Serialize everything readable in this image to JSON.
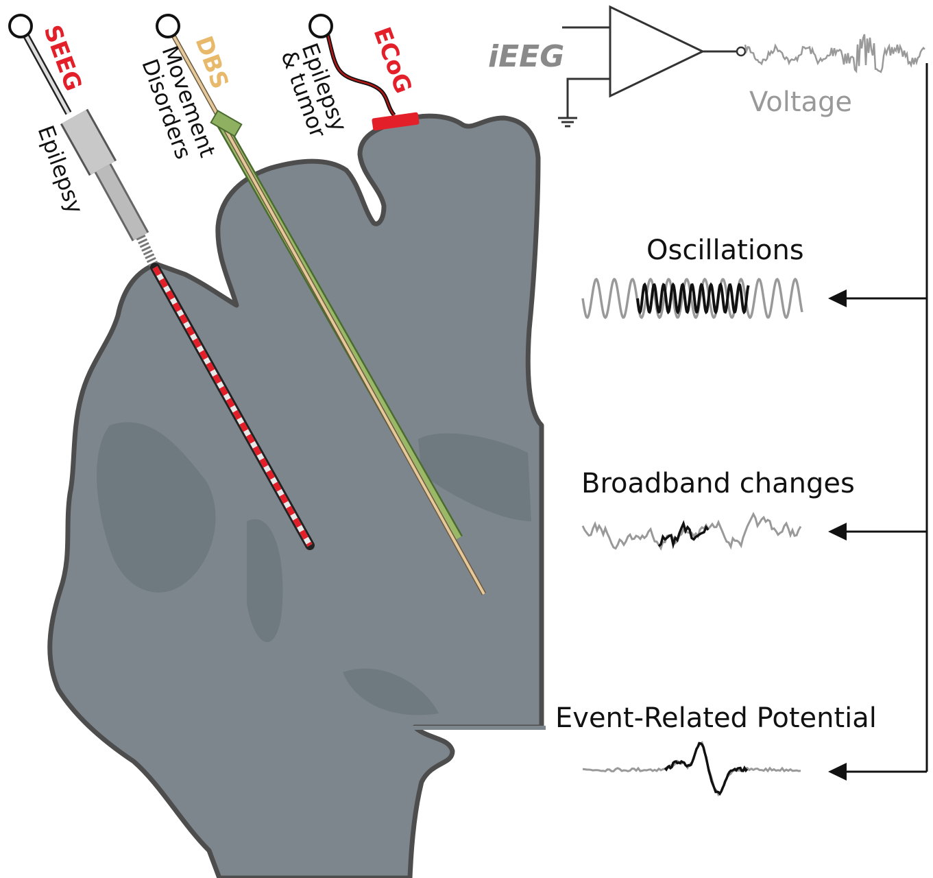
{
  "electrodes": [
    {
      "name": "SEEG",
      "use": [
        "Epilepsy"
      ]
    },
    {
      "name": "DBS",
      "use": [
        "Movement",
        "Disorders"
      ]
    },
    {
      "name": "ECoG",
      "use": [
        "Epilepsy",
        "& tumor"
      ]
    }
  ],
  "amplifier": {
    "label": "iEEG",
    "output": "Voltage"
  },
  "signals": [
    "Oscillations",
    "Broadband changes",
    "Event-Related Potential"
  ]
}
